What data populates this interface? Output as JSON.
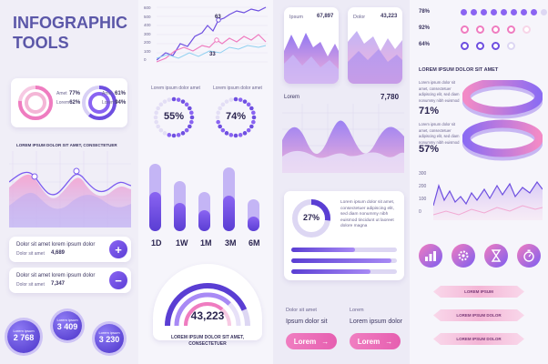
{
  "header": {
    "title_line1": "INFOGRAPHIC",
    "title_line2": "TOOLS"
  },
  "col1": {
    "circles_card": {
      "left": {
        "rows": [
          {
            "label": "Amet",
            "value": "77%"
          },
          {
            "label": "Lorem",
            "value": "62%"
          }
        ]
      },
      "right": {
        "rows": [
          {
            "label": "Amet",
            "value": "61%"
          },
          {
            "label": "Lorem",
            "value": "94%"
          }
        ]
      }
    },
    "wave_title": "LOREM IPSUM DOLOR SIT AMET, CONSECTETUER",
    "stat_cards": [
      {
        "title": "Dolor sit amet lorem ipsum dolor",
        "label": "Dolor sit amet",
        "value": "4,689",
        "button": "+"
      },
      {
        "title": "Dolor sit amet lorem ipsum dolor",
        "label": "Dolor sit amet",
        "value": "7,347",
        "button": "−"
      }
    ],
    "bubbles": [
      {
        "label": "Lorem ipsum",
        "value": "2 768"
      },
      {
        "label": "Lorem ipsum",
        "value": "3 409"
      },
      {
        "label": "Lorem ipsum",
        "value": "3 230"
      }
    ]
  },
  "col2": {
    "line_chart": {
      "y_ticks": [
        "600",
        "500",
        "400",
        "300",
        "200",
        "100",
        "0"
      ],
      "peak_label": "63",
      "low_label": "33"
    },
    "gauges": [
      {
        "label": "Lorem ipsum dolor amet",
        "value": "55%",
        "fraction": 0.55
      },
      {
        "label": "Lorem ipsum dolor amet",
        "value": "74%",
        "fraction": 0.74
      }
    ],
    "pill_bars": [
      {
        "label": "1D",
        "levels": [
          0.95,
          0.55
        ]
      },
      {
        "label": "1W",
        "levels": [
          0.7,
          0.4
        ]
      },
      {
        "label": "1M",
        "levels": [
          0.55,
          0.3
        ]
      },
      {
        "label": "3M",
        "levels": [
          0.9,
          0.5
        ]
      },
      {
        "label": "6M",
        "levels": [
          0.45,
          0.2
        ]
      }
    ],
    "half_gauge": {
      "value": "43,223",
      "caption_line1": "LOREM IPSUM DOLOR SIT AMET,",
      "caption_line2": "CONSECTETUER"
    }
  },
  "col3": {
    "top_cards": [
      {
        "label": "Ipsum",
        "value": "67,897"
      },
      {
        "label": "Dolor",
        "value": "43,223"
      }
    ],
    "wave_card": {
      "label": "Lorem",
      "value": "7,780"
    },
    "donut_card": {
      "value": "27%",
      "fraction": 0.27,
      "text": "Lorem ipsum dolor sit amet, consectetuer adipiscing elit, sed diam nonummy nibh euismod tincidunt ut laoreet dolore magna",
      "bars": [
        0.6,
        0.95,
        0.75
      ]
    },
    "bottom_cols": [
      {
        "title": "Dolor sit amet",
        "subtitle": "Ipsum dolor sit",
        "button": "Lorem"
      },
      {
        "title": "Lorem",
        "subtitle": "Lorem ipsum dolor",
        "button": "Lorem"
      }
    ]
  },
  "col4": {
    "dot_rows": [
      {
        "label": "78%",
        "filled": 8,
        "total": 10
      },
      {
        "label": "92%",
        "filled": 4,
        "total": 5
      },
      {
        "label": "64%",
        "filled": 3,
        "total": 4
      }
    ],
    "section_title": "LOREM IPSUM DOLOR SIT AMET",
    "ring_items": [
      {
        "value": "71%",
        "text": "Lorem ipsum dolor sit amet, consectetuer adipiscing elit, sed diam nonummy nibh euismod"
      },
      {
        "value": "57%",
        "text": "Lorem ipsum dolor sit amet, consectetuer adipiscing elit, sed diam nonummy nibh euismod"
      }
    ],
    "line_chart": {
      "y_ticks": [
        "300",
        "200",
        "100",
        "0"
      ]
    },
    "icons": [
      "bar-chart-icon",
      "gear-icon",
      "hourglass-icon",
      "stopwatch-icon"
    ],
    "ribbons": [
      "LOREM IPSUM",
      "LOREM IPSUM DOLOR",
      "LOREM IPSUM DOLOR"
    ]
  },
  "colors": {
    "purple": "#5a3ed3",
    "violet": "#8a64f2",
    "pink": "#ef7cc0",
    "lavender": "#d8d0f5"
  }
}
